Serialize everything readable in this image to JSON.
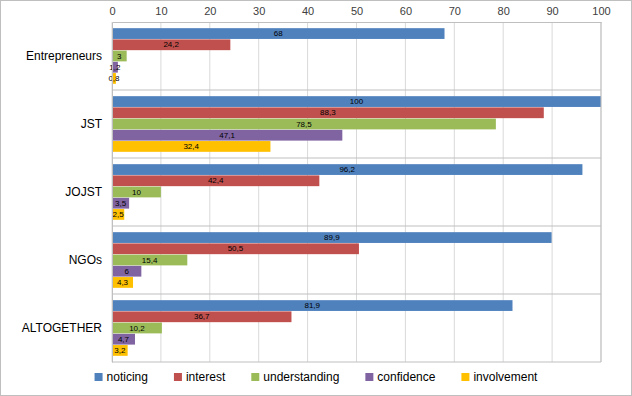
{
  "chart_data": {
    "type": "bar",
    "orientation": "horizontal",
    "categories": [
      "Entrepreneurs",
      "JST",
      "JOJST",
      "NGOs",
      "ALTOGETHER"
    ],
    "series": [
      {
        "name": "noticing",
        "color": "#4f81bd",
        "values": [
          68,
          100,
          96.2,
          89.9,
          81.9
        ],
        "value_labels": [
          "68",
          "100",
          "96,2",
          "89,9",
          "81,9"
        ]
      },
      {
        "name": "interest",
        "color": "#c0504d",
        "values": [
          24.2,
          88.3,
          42.4,
          50.5,
          36.7
        ],
        "value_labels": [
          "24,2",
          "88,3",
          "42,4",
          "50,5",
          "36,7"
        ]
      },
      {
        "name": "understanding",
        "color": "#9bbb59",
        "values": [
          3,
          78.5,
          10,
          15.4,
          10.2
        ],
        "value_labels": [
          "3",
          "78,5",
          "10",
          "15,4",
          "10,2"
        ]
      },
      {
        "name": "confidence",
        "color": "#8064a2",
        "values": [
          1.2,
          47.1,
          3.5,
          6,
          4.7
        ],
        "value_labels": [
          "1,2",
          "47,1",
          "3,5",
          "6",
          "4,7"
        ]
      },
      {
        "name": "involvement",
        "color": "#ffc000",
        "values": [
          0.8,
          32.4,
          2.5,
          4.3,
          3.2
        ],
        "value_labels": [
          "0,8",
          "32,4",
          "2,5",
          "4,3",
          "3,2"
        ]
      }
    ],
    "xlim": [
      0,
      100
    ],
    "xticks": [
      0,
      10,
      20,
      30,
      40,
      50,
      60,
      70,
      80,
      90,
      100
    ],
    "grid": true,
    "data_labels": true,
    "legend": "bottom"
  }
}
